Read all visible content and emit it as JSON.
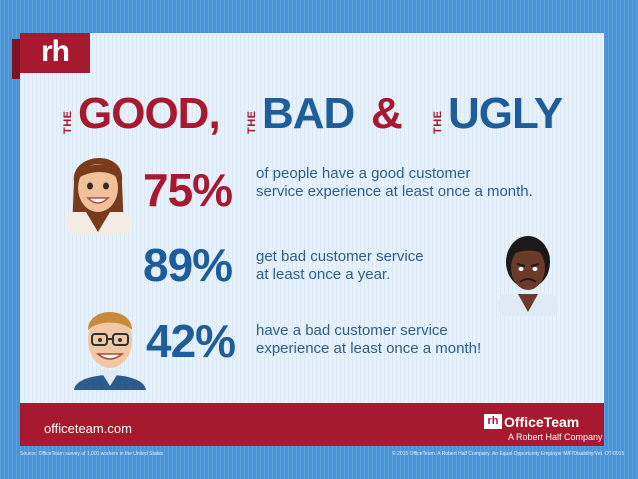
{
  "brand": {
    "logo": "rh"
  },
  "headline": {
    "the1": "THE",
    "good": "GOOD,",
    "the2": "THE",
    "bad": "BAD",
    "amp": "&",
    "the3": "THE",
    "ugly": "UGLY"
  },
  "stats": [
    {
      "pct": "75%",
      "line1": "of people have a good customer",
      "line2": "service experience at least once a month."
    },
    {
      "pct": "89%",
      "line1": "get bad customer service",
      "line2": "at least once a year."
    },
    {
      "pct": "42%",
      "line1": "have a bad customer service",
      "line2": "experience at least once a month!"
    }
  ],
  "footer": {
    "site": "officeteam.com",
    "logo_mark": "rh",
    "logo_name": "OfficeTeam",
    "logo_sub": "A Robert Half Company"
  },
  "source_left": "Source: OfficeTeam survey of 1,001 workers in the United States",
  "source_right": "© 2015 OfficeTeam. A Robert Half Company. An Equal Opportunity Employer M/F/Disability/Vet. OT-0915",
  "colors": {
    "red": "#a6192e",
    "blue": "#1f5c9a",
    "sky": "#4a93d6",
    "card": "#e8f1f9"
  },
  "icons": [
    "woman-smiling-icon",
    "woman-frowning-icon",
    "man-glasses-icon"
  ]
}
